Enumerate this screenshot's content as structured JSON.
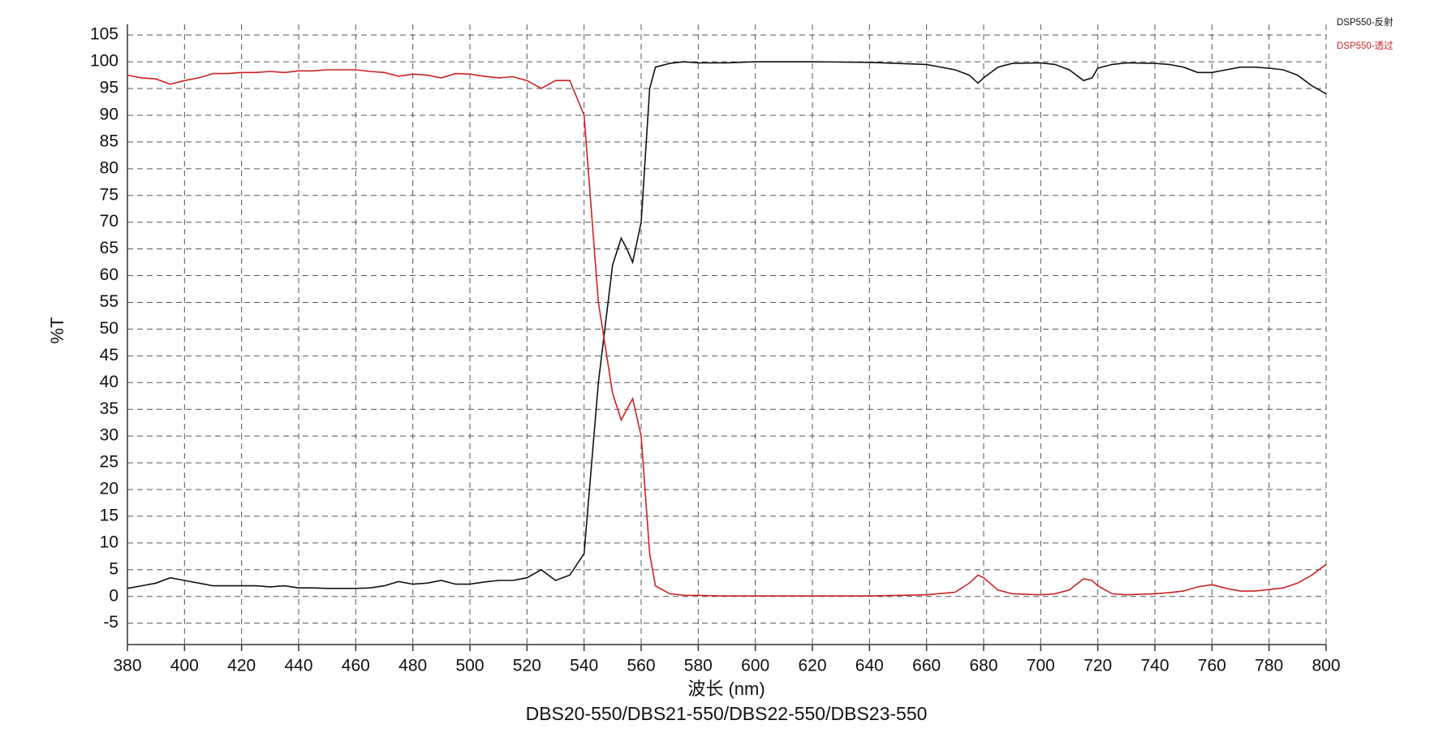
{
  "chart_data": {
    "type": "line",
    "subtitle": "DBS20-550/DBS21-550/DBS22-550/DBS23-550",
    "x_label": "波长 (nm)",
    "y_label": "%T",
    "x": [
      380,
      385,
      390,
      395,
      400,
      405,
      410,
      415,
      420,
      425,
      430,
      435,
      440,
      445,
      450,
      455,
      460,
      465,
      470,
      475,
      480,
      485,
      490,
      495,
      500,
      505,
      510,
      515,
      520,
      525,
      530,
      535,
      540,
      545,
      550,
      553,
      555,
      557,
      560,
      563,
      565,
      570,
      575,
      580,
      590,
      600,
      620,
      640,
      660,
      670,
      675,
      678,
      680,
      685,
      690,
      700,
      705,
      710,
      715,
      718,
      720,
      725,
      730,
      740,
      745,
      750,
      755,
      760,
      765,
      770,
      775,
      780,
      785,
      790,
      795,
      800
    ],
    "series": [
      {
        "name": "DSP550-反射",
        "color": "#111111",
        "values": [
          1.5,
          2,
          2.5,
          3.5,
          3,
          2.5,
          2,
          2,
          2,
          2,
          1.8,
          2,
          1.6,
          1.6,
          1.5,
          1.5,
          1.5,
          1.6,
          2,
          2.8,
          2.3,
          2.5,
          3,
          2.3,
          2.3,
          2.7,
          3,
          3,
          3.5,
          5,
          3,
          4,
          8,
          40,
          62,
          67,
          65,
          62.5,
          70,
          95,
          99,
          99.7,
          100,
          99.8,
          99.8,
          100,
          100,
          99.9,
          99.5,
          98.5,
          97.5,
          96,
          97,
          99,
          99.7,
          99.8,
          99.5,
          98.5,
          96.5,
          97,
          98.8,
          99.5,
          99.8,
          99.7,
          99.5,
          99,
          98,
          98,
          98.5,
          99,
          99,
          98.8,
          98.5,
          97.5,
          95.5,
          94
        ]
      },
      {
        "name": "DSP550-透过",
        "color": "#cc2222",
        "values": [
          97.5,
          97,
          96.8,
          95.8,
          96.5,
          97,
          97.8,
          97.8,
          98,
          98,
          98.2,
          98,
          98.3,
          98.3,
          98.5,
          98.5,
          98.5,
          98.2,
          98,
          97.3,
          97.7,
          97.5,
          97,
          97.8,
          97.7,
          97.3,
          97,
          97.2,
          96.5,
          95,
          96.5,
          96.5,
          90,
          55,
          38,
          33,
          35,
          37,
          30,
          8,
          2,
          0.5,
          0.2,
          0.2,
          0.1,
          0.1,
          0.1,
          0.1,
          0.3,
          0.8,
          2.5,
          4,
          3.5,
          1.2,
          0.5,
          0.3,
          0.5,
          1.2,
          3.3,
          3,
          2,
          0.5,
          0.3,
          0.5,
          0.7,
          1,
          1.8,
          2.2,
          1.5,
          1,
          1,
          1.3,
          1.6,
          2.5,
          4,
          6
        ]
      }
    ],
    "xlim": [
      380,
      800
    ],
    "ylim": [
      -9,
      107
    ],
    "xticks": [
      380,
      400,
      420,
      440,
      460,
      480,
      500,
      520,
      540,
      560,
      580,
      600,
      620,
      640,
      660,
      680,
      700,
      720,
      740,
      760,
      780,
      800
    ],
    "yticks": [
      -5,
      0,
      5,
      10,
      15,
      20,
      25,
      30,
      35,
      40,
      45,
      50,
      55,
      60,
      65,
      70,
      75,
      80,
      85,
      90,
      95,
      100,
      105
    ],
    "grid": true,
    "legend": "top-right"
  }
}
